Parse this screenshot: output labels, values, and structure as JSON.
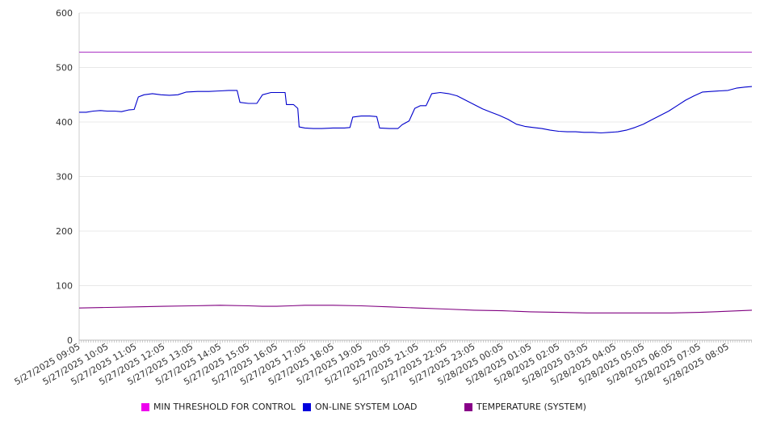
{
  "chart_data": {
    "type": "line",
    "title": "",
    "xlabel": "",
    "ylabel": "",
    "ylim": [
      0,
      600
    ],
    "yticks": [
      0,
      100,
      200,
      300,
      400,
      500,
      600
    ],
    "grid": true,
    "legend_position": "bottom",
    "x_tick_labels": [
      "5/27/2025 09:05",
      "5/27/2025 10:05",
      "5/27/2025 11:05",
      "5/27/2025 12:05",
      "5/27/2025 13:05",
      "5/27/2025 14:05",
      "5/27/2025 15:05",
      "5/27/2025 16:05",
      "5/27/2025 17:05",
      "5/27/2025 18:05",
      "5/27/2025 19:05",
      "5/27/2025 20:05",
      "5/27/2025 21:05",
      "5/27/2025 22:05",
      "5/27/2025 23:05",
      "5/28/2025 00:05",
      "5/28/2025 01:05",
      "5/28/2025 02:05",
      "5/28/2025 03:05",
      "5/28/2025 04:05",
      "5/28/2025 05:05",
      "5/28/2025 06:05",
      "5/28/2025 07:05",
      "5/28/2025 08:05"
    ],
    "series": [
      {
        "name": "MIN THRESHOLD FOR CONTROL",
        "color": "#ee00ee",
        "line_color": "#b040c8",
        "points": [
          [
            0,
            528
          ],
          [
            23.85,
            528
          ]
        ]
      },
      {
        "name": "ON-LINE SYSTEM LOAD",
        "color": "#0000dd",
        "line_color": "#0000cc",
        "points": [
          [
            0,
            418
          ],
          [
            0.25,
            418
          ],
          [
            0.5,
            420
          ],
          [
            0.75,
            421
          ],
          [
            1.0,
            420
          ],
          [
            1.25,
            420
          ],
          [
            1.5,
            419
          ],
          [
            1.75,
            422
          ],
          [
            1.95,
            423
          ],
          [
            2.1,
            446
          ],
          [
            2.3,
            450
          ],
          [
            2.6,
            452
          ],
          [
            2.9,
            450
          ],
          [
            3.2,
            449
          ],
          [
            3.5,
            450
          ],
          [
            3.8,
            455
          ],
          [
            4.2,
            456
          ],
          [
            4.6,
            456
          ],
          [
            5.0,
            457
          ],
          [
            5.3,
            458
          ],
          [
            5.6,
            458
          ],
          [
            5.7,
            436
          ],
          [
            6.0,
            434
          ],
          [
            6.3,
            434
          ],
          [
            6.5,
            450
          ],
          [
            6.8,
            454
          ],
          [
            7.2,
            454
          ],
          [
            7.3,
            454
          ],
          [
            7.35,
            432
          ],
          [
            7.6,
            432
          ],
          [
            7.75,
            425
          ],
          [
            7.8,
            391
          ],
          [
            8.0,
            389
          ],
          [
            8.3,
            388
          ],
          [
            8.6,
            388
          ],
          [
            9.0,
            389
          ],
          [
            9.4,
            389
          ],
          [
            9.6,
            390
          ],
          [
            9.7,
            409
          ],
          [
            10.0,
            411
          ],
          [
            10.3,
            411
          ],
          [
            10.55,
            410
          ],
          [
            10.65,
            389
          ],
          [
            11.0,
            388
          ],
          [
            11.3,
            388
          ],
          [
            11.45,
            395
          ],
          [
            11.7,
            402
          ],
          [
            11.9,
            425
          ],
          [
            12.1,
            430
          ],
          [
            12.3,
            430
          ],
          [
            12.5,
            452
          ],
          [
            12.8,
            454
          ],
          [
            13.1,
            452
          ],
          [
            13.4,
            448
          ],
          [
            13.7,
            440
          ],
          [
            14.0,
            432
          ],
          [
            14.3,
            424
          ],
          [
            14.6,
            418
          ],
          [
            14.9,
            412
          ],
          [
            15.2,
            405
          ],
          [
            15.5,
            396
          ],
          [
            15.8,
            392
          ],
          [
            16.1,
            390
          ],
          [
            16.4,
            388
          ],
          [
            16.7,
            385
          ],
          [
            17.0,
            383
          ],
          [
            17.3,
            382
          ],
          [
            17.6,
            382
          ],
          [
            17.9,
            381
          ],
          [
            18.2,
            381
          ],
          [
            18.5,
            380
          ],
          [
            18.8,
            381
          ],
          [
            19.1,
            382
          ],
          [
            19.4,
            385
          ],
          [
            19.7,
            390
          ],
          [
            20.0,
            396
          ],
          [
            20.3,
            404
          ],
          [
            20.6,
            412
          ],
          [
            20.9,
            420
          ],
          [
            21.2,
            430
          ],
          [
            21.5,
            440
          ],
          [
            21.8,
            448
          ],
          [
            22.1,
            455
          ],
          [
            22.4,
            456
          ],
          [
            22.7,
            457
          ],
          [
            23.0,
            458
          ],
          [
            23.3,
            462
          ],
          [
            23.6,
            464
          ],
          [
            23.85,
            465
          ]
        ]
      },
      {
        "name": "TEMPERATURE (SYSTEM)",
        "color": "#880088",
        "line_color": "#800080",
        "points": [
          [
            0,
            59
          ],
          [
            1.0,
            60
          ],
          [
            2.0,
            61
          ],
          [
            3.0,
            62
          ],
          [
            4.0,
            63
          ],
          [
            5.0,
            64
          ],
          [
            6.0,
            63
          ],
          [
            6.5,
            62
          ],
          [
            7.0,
            62
          ],
          [
            7.5,
            63
          ],
          [
            8.0,
            64
          ],
          [
            9.0,
            64
          ],
          [
            10.0,
            63
          ],
          [
            11.0,
            61
          ],
          [
            12.0,
            59
          ],
          [
            13.0,
            57
          ],
          [
            14.0,
            55
          ],
          [
            15.0,
            54
          ],
          [
            16.0,
            52
          ],
          [
            17.0,
            51
          ],
          [
            18.0,
            50
          ],
          [
            19.0,
            50
          ],
          [
            20.0,
            50
          ],
          [
            21.0,
            50
          ],
          [
            22.0,
            51
          ],
          [
            23.0,
            53
          ],
          [
            23.85,
            55
          ]
        ]
      }
    ]
  }
}
